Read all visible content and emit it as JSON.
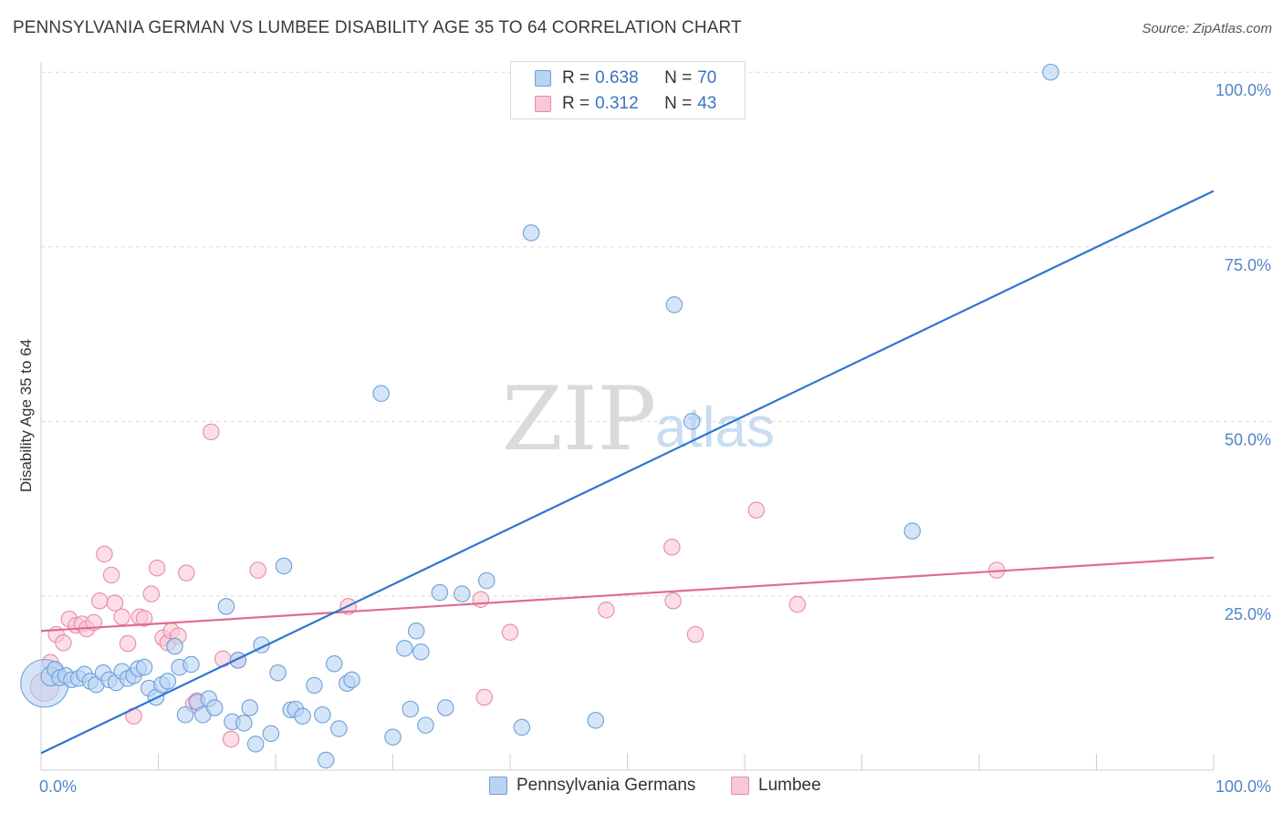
{
  "header": {
    "title": "PENNSYLVANIA GERMAN VS LUMBEE DISABILITY AGE 35 TO 64 CORRELATION CHART",
    "source": "Source: ZipAtlas.com"
  },
  "watermark": {
    "zip": "ZIP",
    "atlas": "atlas"
  },
  "legend": {
    "rows": [
      {
        "r_label": "R =",
        "r_value": "0.638",
        "n_label": "N =",
        "n_value": "70"
      },
      {
        "r_label": "R =",
        "r_value": "0.312",
        "n_label": "N =",
        "n_value": "43"
      }
    ]
  },
  "bottom_legend": {
    "series_a": "Pennsylvania Germans",
    "series_b": "Lumbee"
  },
  "colors": {
    "blue_fill": "#b9d3f3",
    "blue_stroke": "#6d9fd8",
    "blue_line": "#2f76d2",
    "pink_fill": "#f8c8d6",
    "pink_stroke": "#e98aa8",
    "pink_line": "#e06b92",
    "tick_text": "#4f86c9"
  },
  "chart_data": {
    "type": "scatter",
    "title": "PENNSYLVANIA GERMAN VS LUMBEE DISABILITY AGE 35 TO 64 CORRELATION CHART",
    "xlabel": "",
    "ylabel": "Disability Age 35 to 64",
    "xlim": [
      0,
      100
    ],
    "ylim": [
      0,
      102
    ],
    "x_tick_labels": [
      "0.0%",
      "100.0%"
    ],
    "y_ticks": [
      25,
      50,
      75,
      100
    ],
    "y_tick_labels": [
      "25.0%",
      "50.0%",
      "75.0%",
      "100.0%"
    ],
    "grid": "horizontal dashed",
    "legend_position": "top-center",
    "series": [
      {
        "name": "Pennsylvania Germans",
        "color": "#b9d3f3",
        "r": 0.638,
        "n": 70,
        "trend": {
          "x": [
            0,
            100
          ],
          "y": [
            2.5,
            83.0
          ]
        },
        "points": [
          [
            0.3,
            12.5,
            30
          ],
          [
            0.8,
            13.5,
            12
          ],
          [
            1.2,
            14.5,
            10
          ],
          [
            1.6,
            13.3,
            10
          ],
          [
            2.1,
            13.6,
            10
          ],
          [
            2.6,
            13.0,
            10
          ],
          [
            3.2,
            13.2,
            10
          ],
          [
            3.7,
            13.8,
            10
          ],
          [
            4.2,
            12.8,
            10
          ],
          [
            4.7,
            12.3,
            10
          ],
          [
            5.3,
            14.0,
            10
          ],
          [
            5.8,
            13.0,
            10
          ],
          [
            6.4,
            12.6,
            10
          ],
          [
            6.9,
            14.2,
            10
          ],
          [
            7.4,
            13.2,
            10
          ],
          [
            7.9,
            13.6,
            10
          ],
          [
            8.3,
            14.6,
            10
          ],
          [
            8.8,
            14.8,
            10
          ],
          [
            9.2,
            11.8,
            10
          ],
          [
            9.8,
            10.5,
            10
          ],
          [
            10.3,
            12.3,
            10
          ],
          [
            10.8,
            12.8,
            10
          ],
          [
            11.4,
            17.8,
            10
          ],
          [
            11.8,
            14.8,
            10
          ],
          [
            12.3,
            8.0,
            10
          ],
          [
            12.8,
            15.2,
            10
          ],
          [
            13.3,
            9.8,
            10
          ],
          [
            13.8,
            8.0,
            10
          ],
          [
            14.3,
            10.3,
            10
          ],
          [
            14.8,
            9.0,
            10
          ],
          [
            15.8,
            23.5,
            10
          ],
          [
            16.3,
            7.0,
            10
          ],
          [
            16.8,
            15.8,
            10
          ],
          [
            17.3,
            6.8,
            10
          ],
          [
            17.8,
            9.0,
            10
          ],
          [
            18.3,
            3.8,
            10
          ],
          [
            18.8,
            18.0,
            10
          ],
          [
            19.6,
            5.3,
            10
          ],
          [
            20.2,
            14.0,
            10
          ],
          [
            20.7,
            29.3,
            10
          ],
          [
            21.3,
            8.7,
            10
          ],
          [
            21.7,
            8.8,
            10
          ],
          [
            22.3,
            7.8,
            10
          ],
          [
            23.3,
            12.2,
            10
          ],
          [
            24.0,
            8.0,
            10
          ],
          [
            24.3,
            1.5,
            10
          ],
          [
            25.0,
            15.3,
            10
          ],
          [
            25.4,
            6.0,
            10
          ],
          [
            26.1,
            12.5,
            10
          ],
          [
            26.5,
            13.0,
            10
          ],
          [
            29.0,
            54.0,
            10
          ],
          [
            30.0,
            4.8,
            10
          ],
          [
            31.0,
            17.5,
            10
          ],
          [
            31.5,
            8.8,
            10
          ],
          [
            32.0,
            20.0,
            10
          ],
          [
            32.4,
            17.0,
            10
          ],
          [
            32.8,
            6.5,
            10
          ],
          [
            34.0,
            25.5,
            10
          ],
          [
            34.5,
            9.0,
            10
          ],
          [
            35.9,
            25.3,
            10
          ],
          [
            38.0,
            27.2,
            10
          ],
          [
            41.0,
            6.2,
            10
          ],
          [
            41.8,
            77.0,
            10
          ],
          [
            47.3,
            7.2,
            10
          ],
          [
            54.0,
            66.7,
            10
          ],
          [
            55.5,
            50.0,
            10
          ],
          [
            74.3,
            34.3,
            10
          ],
          [
            86.1,
            100.0,
            10
          ],
          [
            48.0,
            100.2,
            10
          ],
          [
            50.0,
            100.2,
            10
          ]
        ]
      },
      {
        "name": "Lumbee",
        "color": "#f8c8d6",
        "r": 0.312,
        "n": 43,
        "trend": {
          "x": [
            0,
            100
          ],
          "y": [
            20.0,
            30.5
          ]
        },
        "points": [
          [
            0.3,
            12.0,
            18
          ],
          [
            0.8,
            15.5,
            10
          ],
          [
            1.3,
            19.5,
            10
          ],
          [
            1.9,
            18.3,
            10
          ],
          [
            2.4,
            21.7,
            10
          ],
          [
            3.0,
            20.8,
            10
          ],
          [
            3.5,
            21.0,
            10
          ],
          [
            3.9,
            20.3,
            10
          ],
          [
            4.5,
            21.2,
            10
          ],
          [
            5.0,
            24.3,
            10
          ],
          [
            5.4,
            31.0,
            10
          ],
          [
            6.0,
            28.0,
            10
          ],
          [
            6.3,
            24.0,
            10
          ],
          [
            6.9,
            22.0,
            10
          ],
          [
            7.4,
            18.2,
            10
          ],
          [
            7.9,
            7.8,
            10
          ],
          [
            8.4,
            22.0,
            10
          ],
          [
            8.8,
            21.8,
            10
          ],
          [
            9.4,
            25.3,
            10
          ],
          [
            9.9,
            29.0,
            10
          ],
          [
            10.4,
            19.0,
            10
          ],
          [
            10.8,
            18.3,
            10
          ],
          [
            11.1,
            20.0,
            10
          ],
          [
            11.7,
            19.3,
            10
          ],
          [
            12.4,
            28.3,
            10
          ],
          [
            13.0,
            9.5,
            10
          ],
          [
            13.3,
            10.0,
            10
          ],
          [
            14.5,
            48.5,
            10
          ],
          [
            15.5,
            16.0,
            10
          ],
          [
            16.2,
            4.5,
            10
          ],
          [
            16.8,
            15.8,
            10
          ],
          [
            18.5,
            28.7,
            10
          ],
          [
            26.2,
            23.5,
            10
          ],
          [
            37.5,
            24.5,
            10
          ],
          [
            37.8,
            10.5,
            10
          ],
          [
            40.0,
            19.8,
            10
          ],
          [
            48.2,
            23.0,
            10
          ],
          [
            53.8,
            32.0,
            10
          ],
          [
            53.9,
            24.3,
            10
          ],
          [
            55.8,
            19.5,
            10
          ],
          [
            61.0,
            37.3,
            10
          ],
          [
            64.5,
            23.8,
            10
          ],
          [
            81.5,
            28.7,
            10
          ]
        ]
      }
    ]
  }
}
